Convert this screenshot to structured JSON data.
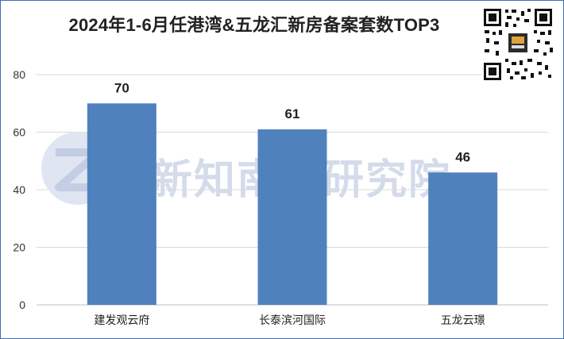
{
  "chart_data": {
    "type": "bar",
    "title": "2024年1-6月任港湾&五龙汇新房备案套数TOP3",
    "categories": [
      "建发观云府",
      "长泰滨河国际",
      "五龙云璟"
    ],
    "values": [
      70,
      61,
      46
    ],
    "xlabel": "",
    "ylabel": "",
    "ylim": [
      0,
      80
    ],
    "yticks": [
      0,
      20,
      40,
      60,
      80
    ],
    "grid": true,
    "legend": "none",
    "bar_color": "#4f81bd"
  },
  "watermark": {
    "text": "新知南通研究院"
  },
  "colors": {
    "bar": "#4f81bd",
    "gridline": "#d9d9d9",
    "border": "#3f6fb0",
    "watermark": "#d4dbea"
  }
}
